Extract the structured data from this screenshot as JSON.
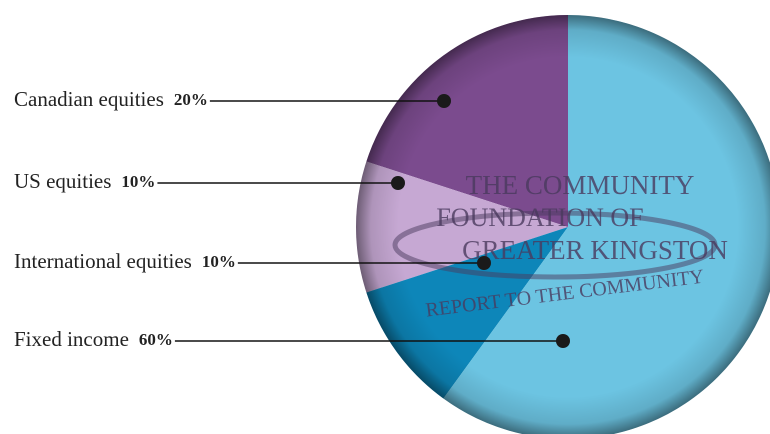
{
  "chart_data": {
    "type": "pie",
    "categories": [
      "Canadian equities",
      "US equities",
      "International equities",
      "Fixed income"
    ],
    "values": [
      20,
      10,
      10,
      60
    ],
    "value_labels": [
      "20%",
      "10%",
      "10%",
      "60%"
    ],
    "colors": [
      "#7b4b8e",
      "#c6a8d3",
      "#0d86b9",
      "#6cc4e2"
    ],
    "annotations": [
      "THE COMMUNITY",
      "FOUNDATION OF",
      "GREATER KINGSTON",
      "REPORT TO THE COMMUNITY"
    ]
  }
}
